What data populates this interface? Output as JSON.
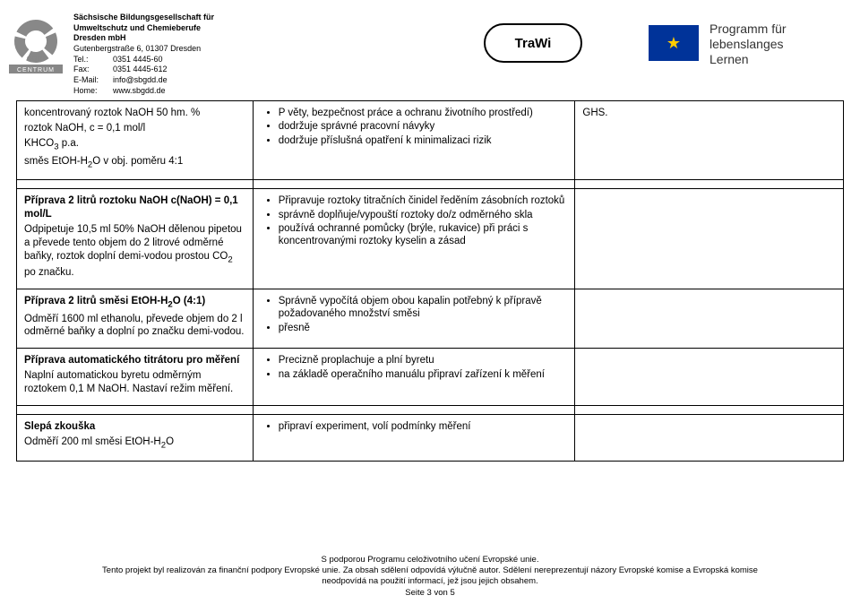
{
  "header": {
    "org": [
      "Sächsische Bildungsgesellschaft für",
      "Umweltschutz und Chemieberufe",
      "Dresden mbH",
      "Gutenbergstraße 6, 01307 Dresden"
    ],
    "contacts": [
      {
        "label": "Tel.:",
        "value": "0351 4445-60"
      },
      {
        "label": "Fax:",
        "value": "0351 4445-612"
      },
      {
        "label": "E-Mail:",
        "value": "info@sbgdd.de"
      },
      {
        "label": "Home:",
        "value": "www.sbgdd.de"
      }
    ],
    "trawi": "TraWi",
    "program": [
      "Programm für",
      "lebenslanges",
      "Lernen"
    ]
  },
  "rows": [
    {
      "left_html": "<p>koncentrovaný roztok NaOH 50 hm. %</p><p>roztok NaOH, c = 0,1 mol/l</p><p>KHCO<sub>3</sub> p.a.</p><p>směs EtOH-H<sub>2</sub>O v obj. poměru 4:1</p>",
      "mid_items": [
        "P věty, bezpečnost práce a ochranu životního prostředí)",
        "dodržuje správné pracovní návyky",
        "dodržuje příslušná opatření k minimalizaci rizik"
      ],
      "right_html": "<p>GHS.</p>"
    },
    {
      "left_html": "<p><b>Příprava 2 litrů roztoku NaOH c(NaOH) = 0,1 mol/L</b></p><p>Odpipetuje 10,5 ml 50% NaOH dělenou pipetou a převede tento objem do 2 litrové odměrné baňky, roztok doplní demi-vodou prostou CO<sub>2</sub> po značku.</p>",
      "mid_items": [
        "Připravuje roztoky titračních činidel ředěním zásobních roztoků",
        "správně doplňuje/vypouští roztoky do/z odměrného skla",
        "používá ochranné pomůcky (brýle, rukavice) při práci s koncentrovanými roztoky kyselin a zásad"
      ],
      "right_html": ""
    },
    {
      "left_html": "<p><b>Příprava 2 litrů směsi EtOH-H<sub>2</sub>O (4:1)</b></p><p>Odměří 1600 ml ethanolu, převede objem do 2 l odměrné baňky a doplní po značku demi-vodou.</p>",
      "mid_items": [
        "Správně vypočítá objem obou kapalin potřebný k přípravě požadovaného množství směsi",
        "přesně"
      ],
      "right_html": ""
    },
    {
      "left_html": "<p><b>Příprava automatického titrátoru pro měření</b></p><p>Naplní automatickou byretu odměrným roztokem 0,1 M NaOH. Nastaví režim měření.</p>",
      "mid_items": [
        "Precizně proplachuje a plní byretu",
        "na základě operačního manuálu připraví zařízení k měření"
      ],
      "right_html": ""
    },
    {
      "left_html": "<p><b>Slepá zkouška</b></p><p>Odměří 200 ml směsi EtOH-H<sub>2</sub>O</p>",
      "mid_items": [
        "připraví experiment, volí podmínky měření"
      ],
      "right_html": ""
    }
  ],
  "footer": [
    "S podporou Programu celoživotního učení Evropské unie.",
    "Tento projekt byl realizován za finanční podpory Evropské unie. Za obsah sdělení odpovídá výlučně autor. Sdělení nereprezentují názory Evropské komise a Evropská komise",
    "neodpovídá na použití informací, jež jsou jejich obsahem.",
    "Seite 3 von 5"
  ]
}
